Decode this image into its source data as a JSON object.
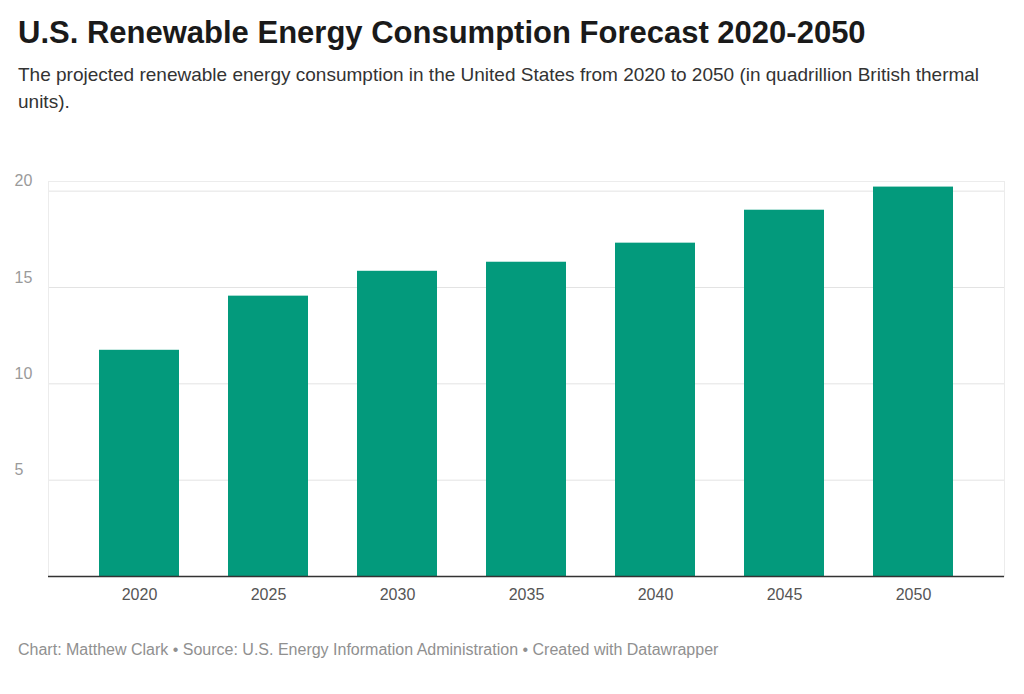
{
  "chart_data": {
    "type": "bar",
    "title": "U.S. Renewable Energy Consumption Forecast 2020-2050",
    "subtitle": "The projected renewable energy consumption in the United States from 2020 to 2050 (in quadrillion British thermal units).",
    "caption": "Chart: Matthew Clark • Source: U.S. Energy Information Administration • Created with Datawrapper",
    "categories": [
      "2020",
      "2025",
      "2030",
      "2035",
      "2040",
      "2045",
      "2050"
    ],
    "values": [
      11.74,
      14.55,
      15.84,
      16.31,
      17.3,
      19.01,
      20.21
    ],
    "color": "#039a7c",
    "ylim": [
      0,
      20.5
    ],
    "yticks": [
      5,
      10,
      15,
      20
    ],
    "grid": true
  }
}
